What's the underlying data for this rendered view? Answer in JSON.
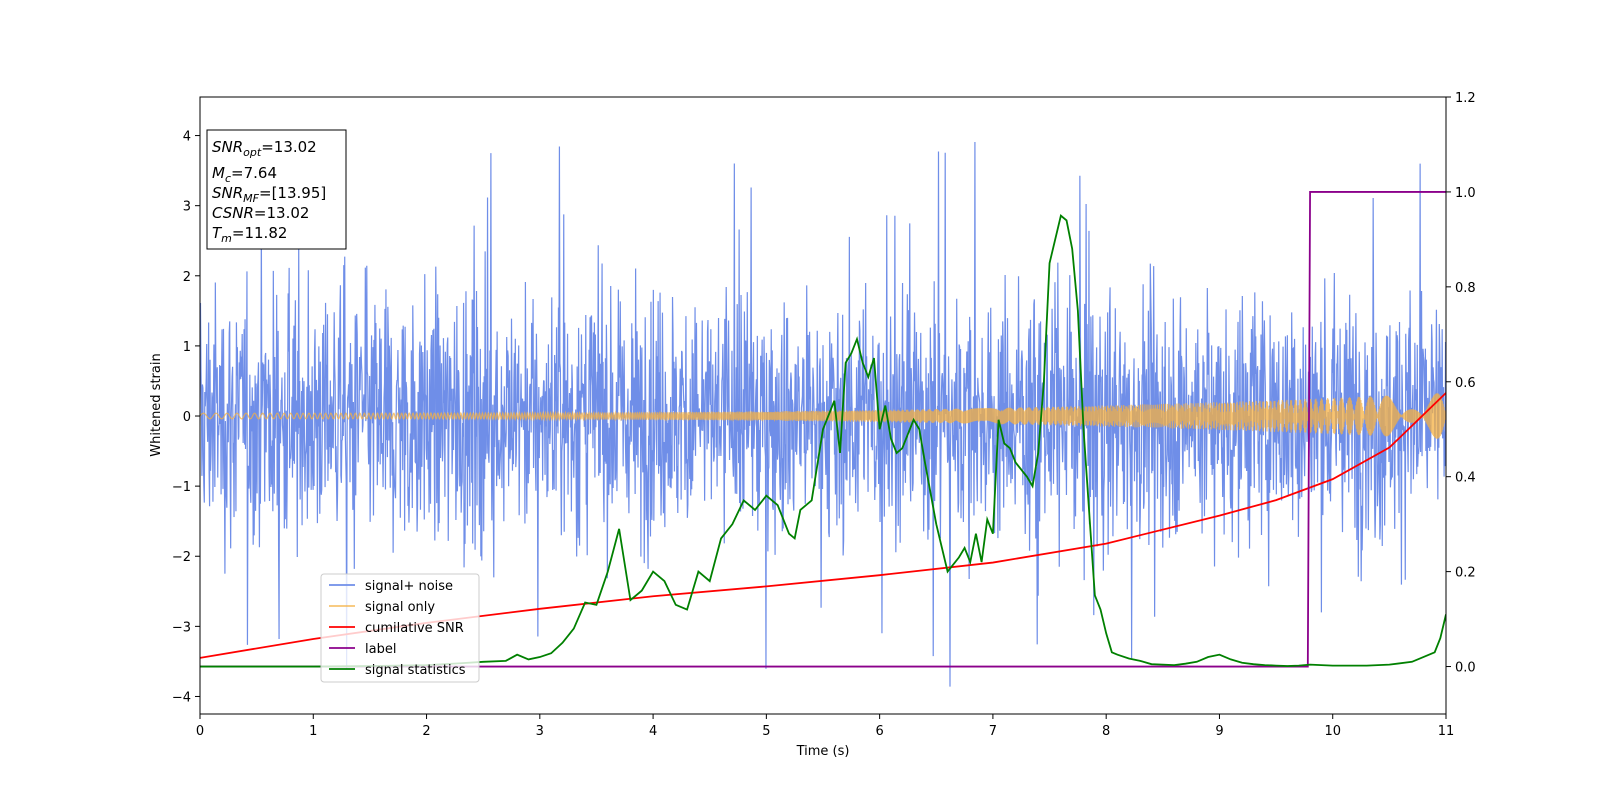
{
  "chart_data": {
    "type": "line",
    "xlabel": "Time (s)",
    "ylabel": "Whitened strain",
    "xlim": [
      0,
      11
    ],
    "ylim": [
      -4.25,
      4.55
    ],
    "y2lim": [
      -0.1,
      1.2
    ],
    "x_ticks": [
      "0",
      "1",
      "2",
      "3",
      "4",
      "5",
      "6",
      "7",
      "8",
      "9",
      "10",
      "11"
    ],
    "y_ticks": [
      "−4",
      "−3",
      "−2",
      "−1",
      "0",
      "1",
      "2",
      "3",
      "4"
    ],
    "y_ticks_values": [
      -4,
      -3,
      -2,
      -1,
      0,
      1,
      2,
      3,
      4
    ],
    "y2_ticks": [
      "0.0",
      "0.2",
      "0.4",
      "0.6",
      "0.8",
      "1.0",
      "1.2"
    ],
    "y2_ticks_values": [
      0.0,
      0.2,
      0.4,
      0.6,
      0.8,
      1.0,
      1.2
    ],
    "colors": {
      "noise": "#6f8ee8",
      "signal": "#f5b041",
      "snr": "#ff0000",
      "label": "#8b008b",
      "stats": "#008000"
    },
    "info_box": {
      "snr_opt": {
        "base": "SNR",
        "sub": "opt",
        "value": "=13.02"
      },
      "mc": {
        "base": "M",
        "sub": "c",
        "value": "=7.64"
      },
      "snr_mf": {
        "base": "SNR",
        "sub": "MF",
        "value": "=[13.95]"
      },
      "csnr": {
        "base": "CSNR",
        "value": "=13.02"
      },
      "tm": {
        "base": "T",
        "sub": "m",
        "value": "=11.82"
      }
    },
    "series": [
      {
        "name": "signal+ noise",
        "kind": "noise",
        "amplitude_envelope": 4.0,
        "axis": "left"
      },
      {
        "name": "signal only",
        "kind": "chirp",
        "amp_start": 0.04,
        "amp_end": 0.33,
        "axis": "left"
      },
      {
        "name": "cumilative SNR",
        "kind": "curve",
        "axis": "left",
        "x": [
          0,
          1,
          2,
          3,
          4,
          5,
          6,
          7,
          8,
          9,
          9.5,
          10,
          10.5,
          11
        ],
        "y": [
          -3.45,
          -3.18,
          -2.95,
          -2.75,
          -2.57,
          -2.43,
          -2.27,
          -2.09,
          -1.82,
          -1.42,
          -1.2,
          -0.9,
          -0.45,
          0.33
        ]
      },
      {
        "name": "label",
        "kind": "step",
        "axis": "right",
        "x": [
          0,
          9.78,
          9.8,
          11
        ],
        "y": [
          0,
          0,
          1,
          1
        ]
      },
      {
        "name": "signal statistics",
        "kind": "curve",
        "axis": "right",
        "x": [
          0,
          0.5,
          1,
          1.5,
          2,
          2.3,
          2.5,
          2.7,
          2.8,
          2.9,
          3.0,
          3.1,
          3.2,
          3.3,
          3.4,
          3.5,
          3.6,
          3.7,
          3.8,
          3.9,
          4.0,
          4.1,
          4.2,
          4.3,
          4.4,
          4.5,
          4.6,
          4.7,
          4.8,
          4.9,
          5.0,
          5.1,
          5.2,
          5.25,
          5.3,
          5.4,
          5.5,
          5.6,
          5.65,
          5.7,
          5.75,
          5.8,
          5.85,
          5.9,
          5.95,
          6.0,
          6.05,
          6.1,
          6.15,
          6.2,
          6.3,
          6.35,
          6.4,
          6.5,
          6.6,
          6.7,
          6.75,
          6.8,
          6.85,
          6.9,
          6.95,
          7.0,
          7.05,
          7.1,
          7.15,
          7.2,
          7.3,
          7.35,
          7.4,
          7.45,
          7.5,
          7.6,
          7.65,
          7.7,
          7.75,
          7.8,
          7.9,
          7.95,
          8.0,
          8.05,
          8.1,
          8.2,
          8.3,
          8.4,
          8.5,
          8.6,
          8.7,
          8.8,
          8.9,
          9.0,
          9.1,
          9.2,
          9.3,
          9.4,
          9.5,
          9.6,
          9.7,
          9.8,
          10.0,
          10.3,
          10.5,
          10.7,
          10.8,
          10.9,
          10.95,
          11.0
        ],
        "y": [
          0.0,
          0.0,
          0.0,
          0.001,
          0.003,
          0.007,
          0.01,
          0.012,
          0.025,
          0.015,
          0.02,
          0.028,
          0.05,
          0.08,
          0.135,
          0.13,
          0.2,
          0.29,
          0.14,
          0.16,
          0.2,
          0.18,
          0.13,
          0.12,
          0.2,
          0.18,
          0.27,
          0.3,
          0.35,
          0.33,
          0.36,
          0.34,
          0.28,
          0.27,
          0.33,
          0.35,
          0.5,
          0.56,
          0.45,
          0.64,
          0.66,
          0.69,
          0.64,
          0.61,
          0.65,
          0.5,
          0.55,
          0.48,
          0.45,
          0.46,
          0.52,
          0.5,
          0.43,
          0.3,
          0.2,
          0.23,
          0.25,
          0.22,
          0.28,
          0.22,
          0.31,
          0.28,
          0.52,
          0.47,
          0.46,
          0.43,
          0.4,
          0.38,
          0.45,
          0.6,
          0.85,
          0.95,
          0.94,
          0.88,
          0.75,
          0.5,
          0.15,
          0.12,
          0.07,
          0.03,
          0.025,
          0.017,
          0.012,
          0.005,
          0.004,
          0.003,
          0.006,
          0.01,
          0.02,
          0.025,
          0.015,
          0.008,
          0.005,
          0.003,
          0.002,
          0.001,
          0.002,
          0.004,
          0.002,
          0.002,
          0.004,
          0.01,
          0.02,
          0.03,
          0.06,
          0.11
        ]
      }
    ],
    "legend": {
      "position": "lower-left",
      "entries": [
        "signal+ noise",
        "signal only",
        "cumilative SNR",
        "label",
        "signal statistics"
      ]
    },
    "grid": false
  }
}
